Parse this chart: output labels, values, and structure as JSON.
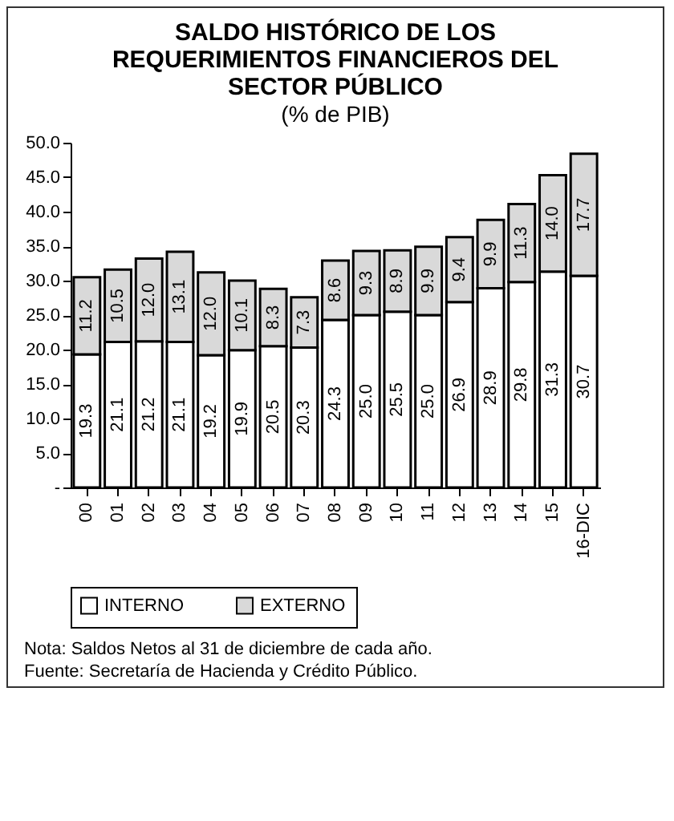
{
  "chart_data": {
    "type": "bar",
    "stacked": true,
    "title": "SALDO HISTÓRICO DE LOS REQUERIMIENTOS FINANCIEROS DEL SECTOR PÚBLICO",
    "subtitle": "(% de PIB)",
    "categories": [
      "00",
      "01",
      "02",
      "03",
      "04",
      "05",
      "06",
      "07",
      "08",
      "09",
      "10",
      "11",
      "12",
      "13",
      "14",
      "15",
      "16-DIC"
    ],
    "series": [
      {
        "name": "INTERNO",
        "color": "#ffffff",
        "values": [
          19.3,
          21.1,
          21.2,
          21.1,
          19.2,
          19.9,
          20.5,
          20.3,
          24.3,
          25.0,
          25.5,
          25.0,
          26.9,
          28.9,
          29.8,
          31.3,
          30.7
        ],
        "value_labels": [
          "19.3",
          "21.1",
          "21.2",
          "21.1",
          "19.2",
          "19.9",
          "20.5",
          "20.3",
          "24.3",
          "25.0",
          "25.5",
          "25.0",
          "26.9",
          "28.9",
          "29.8",
          "31.3",
          "30.7"
        ]
      },
      {
        "name": "EXTERNO",
        "color": "#d9d9d9",
        "values": [
          11.2,
          10.5,
          12.0,
          13.1,
          12.0,
          10.1,
          8.3,
          7.3,
          8.6,
          9.3,
          8.9,
          9.9,
          9.4,
          9.9,
          11.3,
          14.0,
          17.7
        ],
        "value_labels": [
          "11.2",
          "10.5",
          "12.0",
          "13.1",
          "12.0",
          "10.1",
          "8.3",
          "7.3",
          "8.6",
          "9.3",
          "8.9",
          "9.9",
          "9.4",
          "9.9",
          "11.3",
          "14.0",
          "17.7"
        ]
      }
    ],
    "ylim": [
      0,
      50
    ],
    "yticks": [
      {
        "value": 0,
        "label": "-"
      },
      {
        "value": 5,
        "label": "5.0"
      },
      {
        "value": 10,
        "label": "10.0"
      },
      {
        "value": 15,
        "label": "15.0"
      },
      {
        "value": 20,
        "label": "20.0"
      },
      {
        "value": 25,
        "label": "25.0"
      },
      {
        "value": 30,
        "label": "30.0"
      },
      {
        "value": 35,
        "label": "35.0"
      },
      {
        "value": 40,
        "label": "40.0"
      },
      {
        "value": 45,
        "label": "45.0"
      },
      {
        "value": 50,
        "label": "50.0"
      }
    ],
    "legend": "bottom",
    "annotations": [
      "Nota: Saldos Netos al 31 de diciembre de cada año.",
      "Fuente: Secretaría de Hacienda y Crédito Público."
    ]
  }
}
